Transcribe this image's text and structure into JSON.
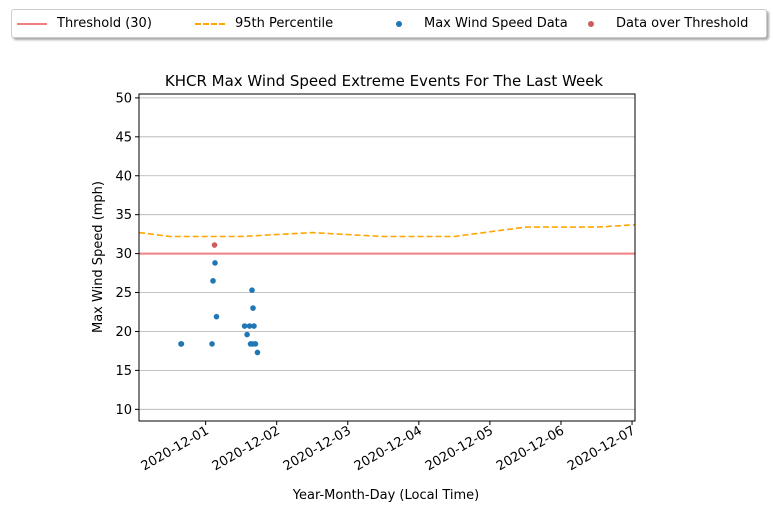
{
  "chart_data": {
    "type": "scatter",
    "title": "KHCR Max Wind Speed Extreme Events For The Last Week",
    "xlabel": "Year-Month-Day (Local Time)",
    "ylabel": "Max Wind Speed (mph)",
    "xlim": [
      "2020-11-30T01:30",
      "2020-12-07T01:00"
    ],
    "ylim": [
      8.5,
      50.5
    ],
    "yticks": [
      10,
      15,
      20,
      25,
      30,
      35,
      40,
      45,
      50
    ],
    "xticks": [
      "2020-12-01",
      "2020-12-02",
      "2020-12-03",
      "2020-12-04",
      "2020-12-05",
      "2020-12-06",
      "2020-12-07"
    ],
    "grid": "y",
    "legend_position": "top, above plot",
    "threshold": {
      "name": "Threshold (30)",
      "value": 30,
      "color": "#f08080"
    },
    "percentile_95": {
      "name": "95th Percentile",
      "color": "#ffa500",
      "points": [
        {
          "x": "2020-11-30T01:30",
          "y": 32.7
        },
        {
          "x": "2020-11-30T12:00",
          "y": 32.2
        },
        {
          "x": "2020-12-01T12:00",
          "y": 32.2
        },
        {
          "x": "2020-12-02T12:00",
          "y": 32.7
        },
        {
          "x": "2020-12-03T12:00",
          "y": 32.2
        },
        {
          "x": "2020-12-04T12:00",
          "y": 32.2
        },
        {
          "x": "2020-12-05T12:00",
          "y": 33.4
        },
        {
          "x": "2020-12-06T12:00",
          "y": 33.4
        },
        {
          "x": "2020-12-07T01:00",
          "y": 33.7
        }
      ]
    },
    "series": [
      {
        "name": "Max Wind Speed Data",
        "color": "#1f77b4",
        "points": [
          {
            "x": "2020-11-30T15:40",
            "y": 18.4
          },
          {
            "x": "2020-11-30T15:50",
            "y": 18.4
          },
          {
            "x": "2020-12-01T02:10",
            "y": 18.4
          },
          {
            "x": "2020-12-01T02:30",
            "y": 26.5
          },
          {
            "x": "2020-12-01T03:10",
            "y": 28.8
          },
          {
            "x": "2020-12-01T03:40",
            "y": 21.9
          },
          {
            "x": "2020-12-01T13:10",
            "y": 20.7
          },
          {
            "x": "2020-12-01T14:00",
            "y": 19.6
          },
          {
            "x": "2020-12-01T14:50",
            "y": 20.7
          },
          {
            "x": "2020-12-01T15:10",
            "y": 18.4
          },
          {
            "x": "2020-12-01T15:40",
            "y": 25.3
          },
          {
            "x": "2020-12-01T15:50",
            "y": 18.4
          },
          {
            "x": "2020-12-01T16:00",
            "y": 23.0
          },
          {
            "x": "2020-12-01T16:20",
            "y": 20.7
          },
          {
            "x": "2020-12-01T16:50",
            "y": 18.4
          },
          {
            "x": "2020-12-01T17:30",
            "y": 17.3
          }
        ]
      },
      {
        "name": "Data over Threshold",
        "color": "#cd5c5c",
        "points": [
          {
            "x": "2020-12-01T03:00",
            "y": 31.1
          }
        ]
      }
    ]
  }
}
